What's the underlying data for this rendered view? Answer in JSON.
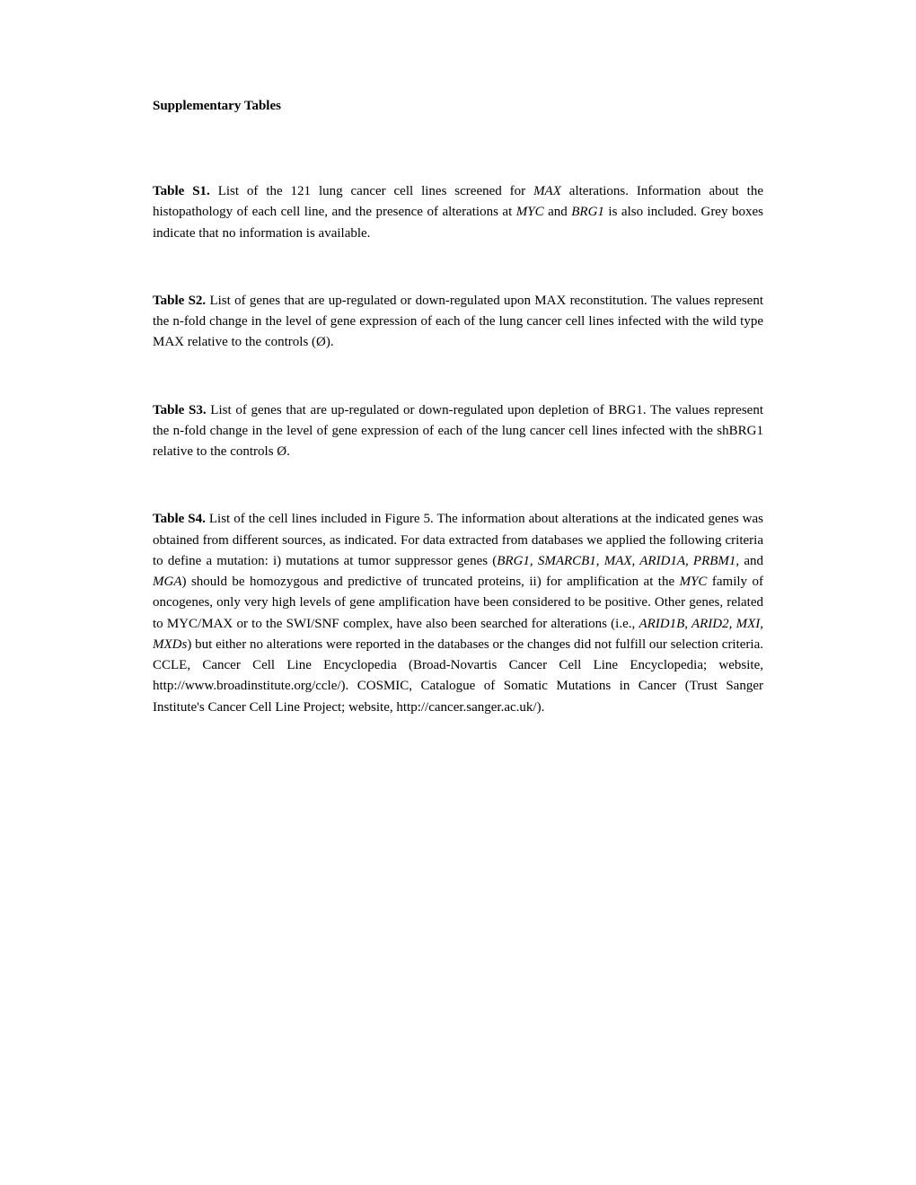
{
  "header": "Supplementary Tables",
  "tables": {
    "s1": {
      "label": "Table S1.",
      "text_parts": [
        " List of the 121 lung cancer cell lines screened for ",
        " alterations. Information about the histopathology of each cell line, and the presence of alterations at ",
        " and ",
        " is also included. Grey boxes indicate that no information is available."
      ],
      "italic_parts": [
        "MAX",
        "MYC",
        "BRG1"
      ]
    },
    "s2": {
      "label": "Table S2.",
      "text": " List of genes that are up-regulated or down-regulated upon MAX reconstitution. The values represent the n-fold change in the level of gene expression of each of the lung cancer cell lines infected with the wild type MAX relative to the controls (Ø)."
    },
    "s3": {
      "label": "Table S3.",
      "text": " List of genes that are up-regulated or down-regulated upon depletion of BRG1. The values represent the n-fold change in the level of gene expression of each of the lung cancer cell lines infected with the shBRG1 relative to the controls Ø."
    },
    "s4": {
      "label": "Table S4.",
      "text_parts": [
        " List of the cell lines included in Figure 5. The information about alterations at the indicated genes was obtained from different sources, as indicated. For data extracted from databases we applied the following criteria to define a mutation: i) mutations at tumor suppressor genes (",
        ", and ",
        ") should be homozygous and predictive of truncated proteins, ii) for amplification at the ",
        " family of oncogenes, only very high levels of gene amplification have been considered to be positive. Other genes, related to MYC/MAX or to the SWI/SNF complex, have also been searched for alterations (i.e., ",
        ") but either no alterations were reported in the databases or the changes did not fulfill our selection criteria. CCLE, Cancer Cell Line Encyclopedia (Broad-Novartis Cancer Cell Line Encyclopedia; website, http://www.broadinstitute.org/ccle/). COSMIC, Catalogue of Somatic Mutations in Cancer (Trust Sanger Institute's Cancer Cell Line Project; website, http://cancer.sanger.ac.uk/)."
      ],
      "italic_parts": [
        "BRG1, SMARCB1, MAX, ARID1A, PRBM1",
        "MGA",
        "MYC",
        "ARID1B, ARID2, MXI, MXDs"
      ]
    }
  }
}
